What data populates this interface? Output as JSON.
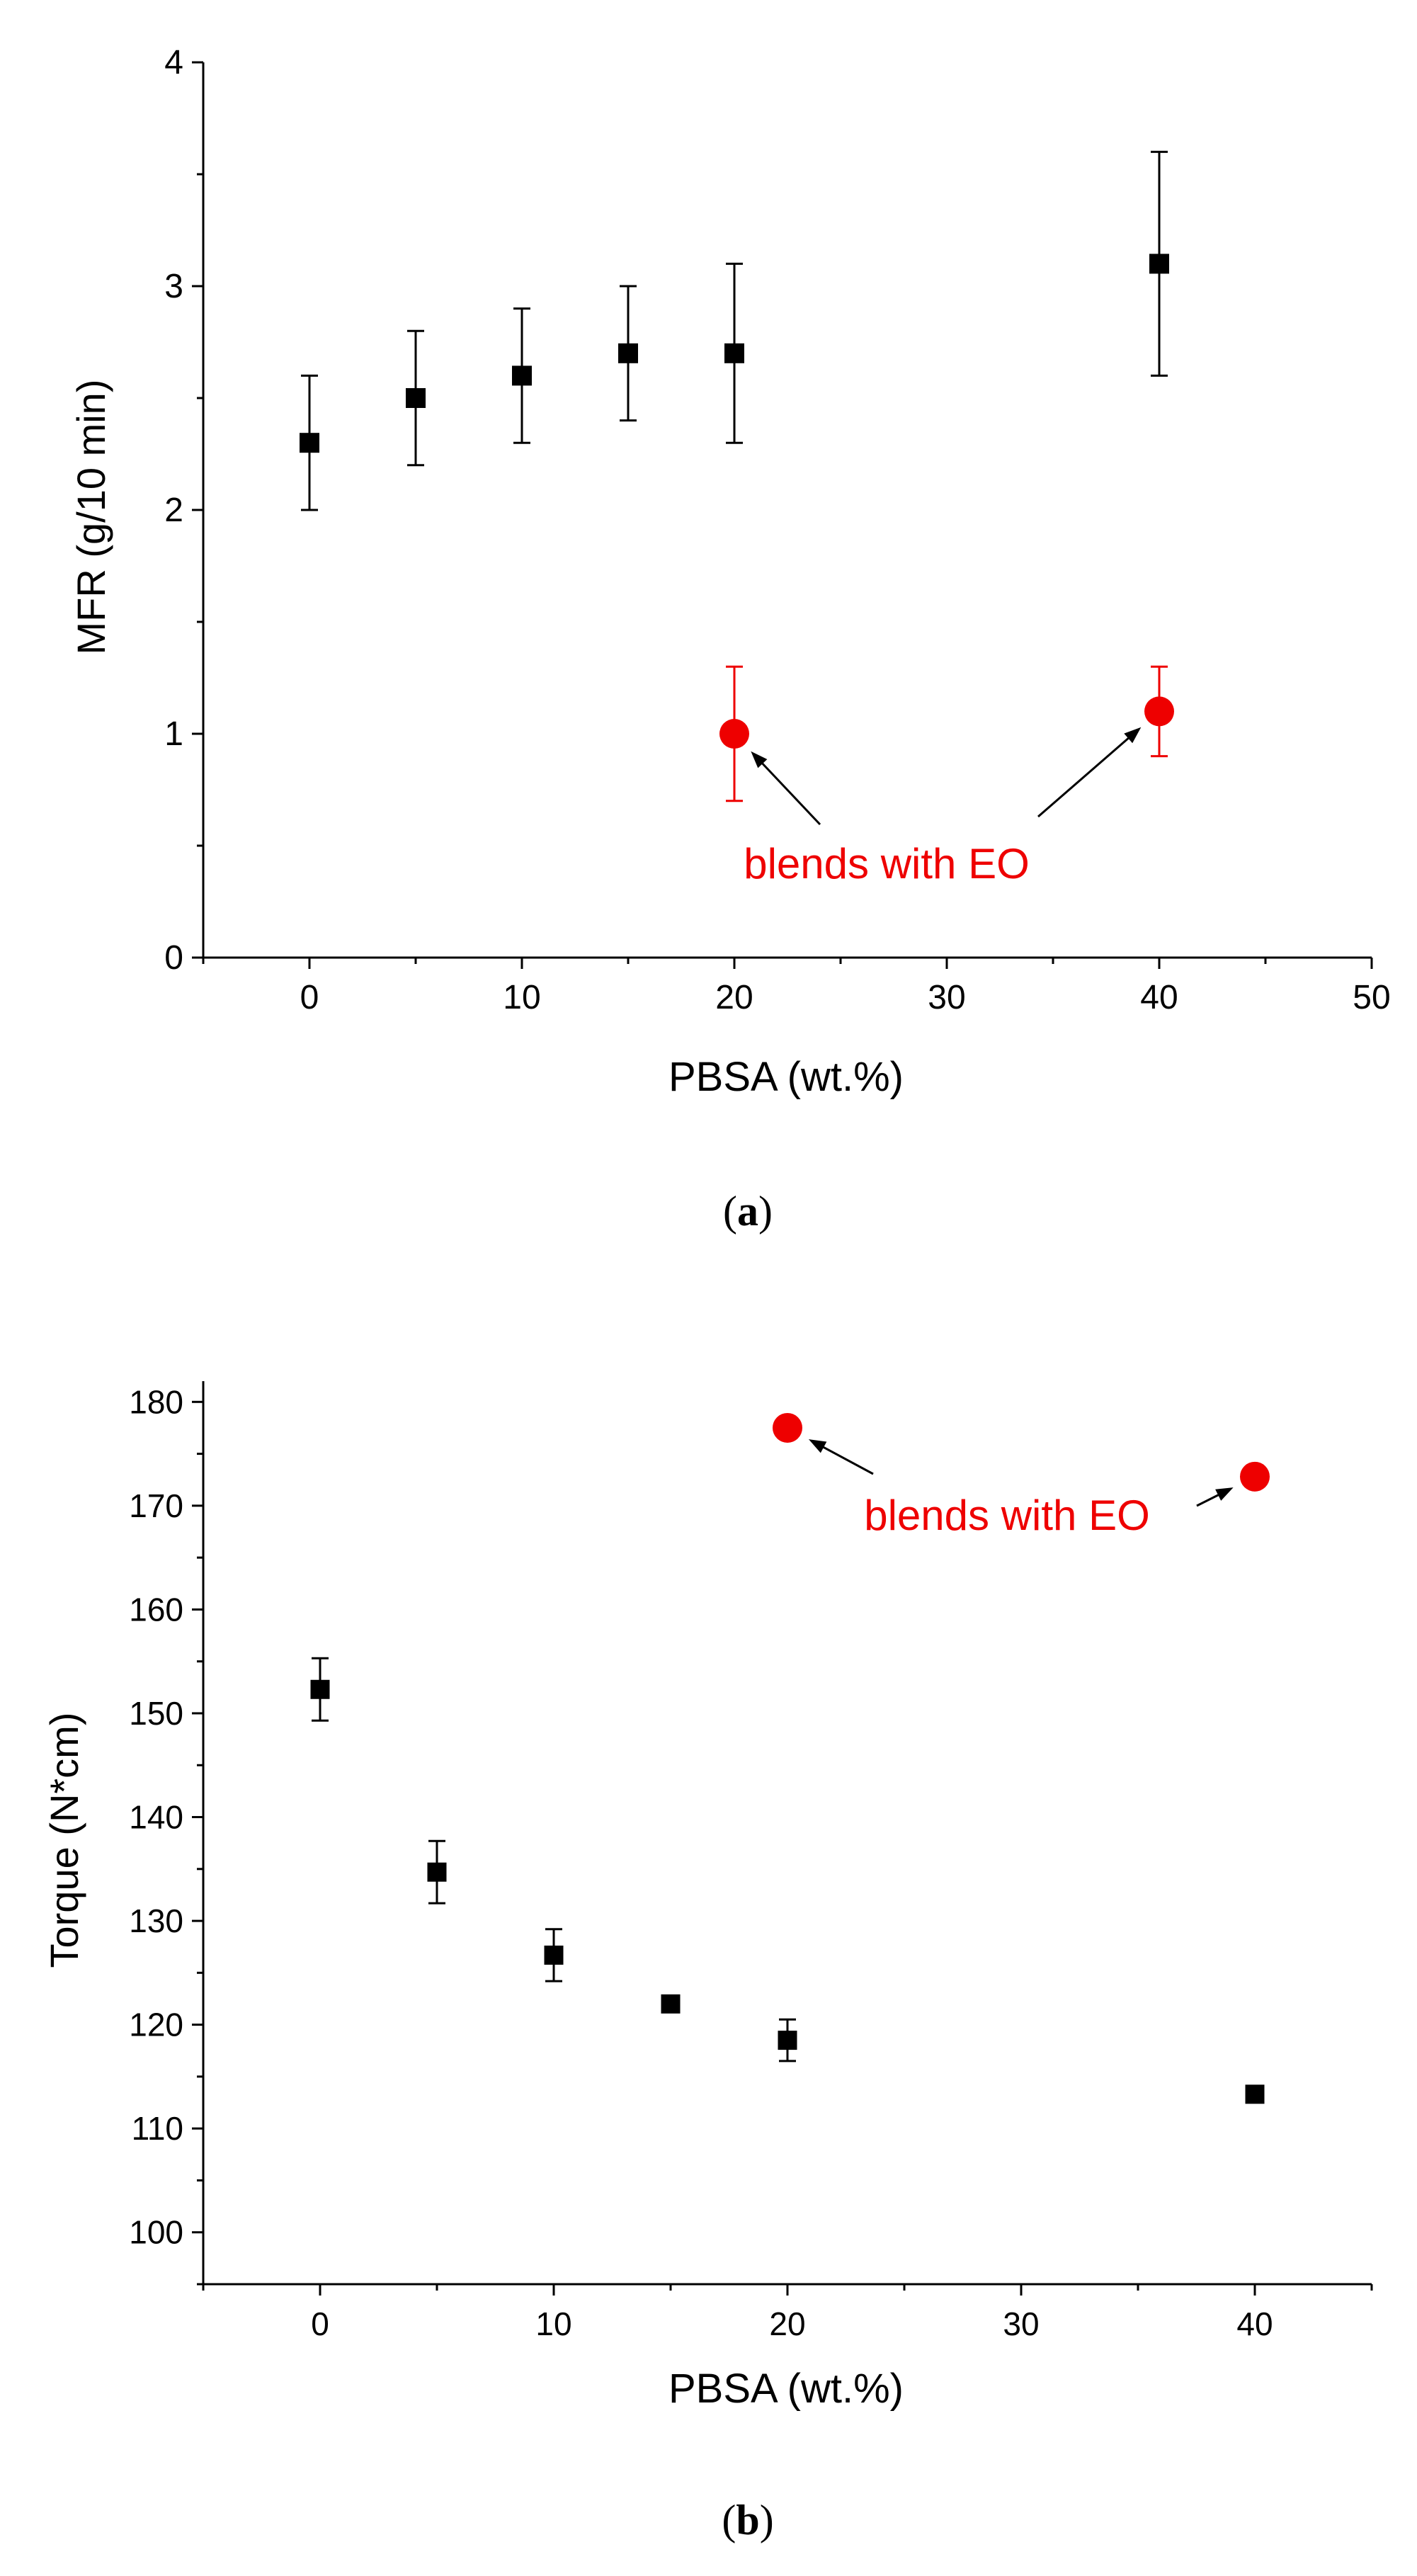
{
  "colors": {
    "black_series": "#000000",
    "red_series": "#ee0000",
    "axis": "#000000"
  },
  "chart_data": [
    {
      "type": "scatter",
      "panel_label": "a",
      "xlabel": "PBSA (wt.%)",
      "ylabel": "MFR (g/10 min)",
      "xlim": [
        -5,
        50
      ],
      "ylim": [
        0,
        4
      ],
      "xticks": [
        0,
        10,
        20,
        30,
        40,
        50
      ],
      "xtick_labels": [
        "0",
        "10",
        "20",
        "30",
        "40",
        "50"
      ],
      "x_minor_ticks": [
        -5,
        5,
        15,
        25,
        35,
        45
      ],
      "yticks": [
        0,
        1,
        2,
        3,
        4
      ],
      "ytick_labels": [
        "0",
        "1",
        "2",
        "3",
        "4"
      ],
      "y_minor_ticks": [
        0.5,
        1.5,
        2.5,
        3.5
      ],
      "grid": false,
      "series": [
        {
          "name": "blends",
          "marker": "square",
          "color": "#000000",
          "x": [
            0,
            5,
            10,
            15,
            20,
            40
          ],
          "y": [
            2.3,
            2.5,
            2.6,
            2.7,
            2.7,
            3.1
          ],
          "error": [
            0.3,
            0.3,
            0.3,
            0.3,
            0.4,
            0.5
          ]
        },
        {
          "name": "blends with EO",
          "marker": "circle",
          "color": "#ee0000",
          "x": [
            20,
            40
          ],
          "y": [
            1.0,
            1.1
          ],
          "error": [
            0.3,
            0.2
          ]
        }
      ],
      "annotations": [
        {
          "text": "blends with EO",
          "x": 26.5,
          "y": 0.4,
          "arrows_to": [
            [
              20,
              1.0
            ],
            [
              40,
              1.1
            ]
          ]
        }
      ]
    },
    {
      "type": "scatter",
      "panel_label": "b",
      "xlabel": "PBSA (wt.%)",
      "ylabel": "Torque (N*cm)",
      "xlim": [
        -5,
        45
      ],
      "ylim": [
        95,
        182
      ],
      "xticks": [
        0,
        10,
        20,
        30,
        40
      ],
      "xtick_labels": [
        "0",
        "10",
        "20",
        "30",
        "40"
      ],
      "x_minor_ticks": [
        -5,
        5,
        15,
        25,
        35,
        45
      ],
      "yticks": [
        100,
        110,
        120,
        130,
        140,
        150,
        160,
        170,
        180
      ],
      "ytick_labels": [
        "100",
        "110",
        "120",
        "130",
        "140",
        "150",
        "160",
        "170",
        "180"
      ],
      "y_minor_ticks": [
        95,
        105,
        115,
        125,
        135,
        145,
        155,
        165,
        175
      ],
      "grid": false,
      "series": [
        {
          "name": "blends",
          "marker": "square",
          "color": "#000000",
          "x": [
            0,
            5,
            10,
            15,
            20,
            40
          ],
          "y": [
            152.3,
            134.7,
            126.7,
            122.0,
            118.5,
            113.3
          ],
          "error": [
            3.0,
            3.0,
            2.5,
            0,
            2.0,
            0
          ]
        },
        {
          "name": "blends with EO",
          "marker": "circle",
          "color": "#ee0000",
          "x": [
            20,
            40
          ],
          "y": [
            177.5,
            172.8
          ],
          "error": [
            0,
            0
          ]
        }
      ],
      "annotations": [
        {
          "text": "blends with EO",
          "x": 29,
          "y": 168.7,
          "arrows_to": [
            [
              20,
              177.5
            ],
            [
              40,
              172.8
            ]
          ]
        }
      ]
    }
  ],
  "captions": {
    "a_open": "(",
    "a_letter": "a",
    "a_close": ")",
    "b_open": "(",
    "b_letter": "b",
    "b_close": ")"
  }
}
